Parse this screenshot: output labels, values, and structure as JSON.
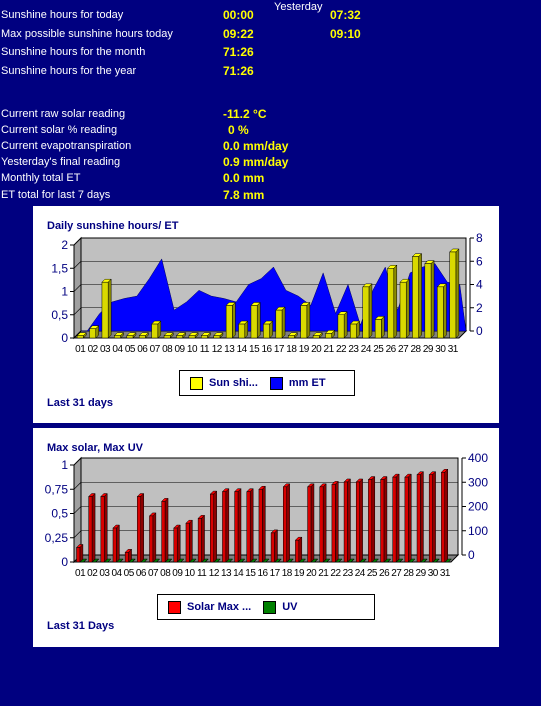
{
  "summary": {
    "yesterday_header": "Yesterday",
    "rows": [
      {
        "label": "Sunshine hours for today",
        "today": "00:00",
        "yesterday": "07:32"
      },
      {
        "label": "Max possible sunshine hours today",
        "today": "09:22",
        "yesterday": "09:10"
      },
      {
        "label": "Sunshine hours for the month",
        "today": "71:26",
        "yesterday": ""
      },
      {
        "label": "Sunshine hours for the year",
        "today": "71:26",
        "yesterday": ""
      }
    ]
  },
  "readings": [
    {
      "label": "Current raw solar reading",
      "value": "-11.2 °C"
    },
    {
      "label": "Current solar % reading",
      "value": "0 %"
    },
    {
      "label": "Current evapotranspiration",
      "value": "0.0 mm/day"
    },
    {
      "label": "Yesterday's final reading",
      "value": "0.9 mm/day"
    },
    {
      "label": "Monthly total ET",
      "value": "0.0 mm"
    },
    {
      "label": "ET total for last 7 days",
      "value": "7.8 mm"
    }
  ],
  "chart_data": [
    {
      "type": "bar",
      "title": "Daily sunshine hours/ ET",
      "footer": "Last 31 days",
      "categories": [
        "01",
        "02",
        "03",
        "04",
        "05",
        "06",
        "07",
        "08",
        "09",
        "10",
        "11",
        "12",
        "13",
        "14",
        "15",
        "16",
        "17",
        "18",
        "19",
        "20",
        "21",
        "22",
        "23",
        "24",
        "25",
        "26",
        "27",
        "28",
        "29",
        "30",
        "31"
      ],
      "series": [
        {
          "name": "Sun shi...",
          "axis": "left",
          "color": "#ffff00",
          "values": [
            0.05,
            0.2,
            1.2,
            0.05,
            0.05,
            0.05,
            0.3,
            0.05,
            0.05,
            0.05,
            0.05,
            0.05,
            0.7,
            0.3,
            0.7,
            0.3,
            0.6,
            0.05,
            0.7,
            0.05,
            0.1,
            0.5,
            0.3,
            1.1,
            0.4,
            1.5,
            1.2,
            1.75,
            1.6,
            1.1,
            1.85
          ]
        },
        {
          "name": "mm ET",
          "axis": "right",
          "type": "area",
          "color": "#0000ff",
          "values": [
            0,
            1.5,
            2.5,
            2.8,
            3,
            4.5,
            6.2,
            1.8,
            2.5,
            3.5,
            3,
            2.8,
            2.5,
            4,
            4.5,
            5.5,
            3.5,
            3,
            2.2,
            5,
            1.5,
            4,
            0.5,
            3.5,
            5.5,
            1.8,
            5,
            5.5,
            5.8,
            4.2,
            4
          ]
        }
      ],
      "ylim_left": [
        0,
        2
      ],
      "yticks_left": [
        "0",
        "0,5",
        "1",
        "1,5",
        "2"
      ],
      "ylim_right": [
        0,
        8
      ],
      "yticks_right": [
        "0",
        "2",
        "4",
        "6",
        "8"
      ],
      "legend_position": "bottom"
    },
    {
      "type": "bar",
      "title": "Max solar, Max UV",
      "footer": "Last 31 Days",
      "categories": [
        "01",
        "02",
        "03",
        "04",
        "05",
        "06",
        "07",
        "08",
        "09",
        "10",
        "11",
        "12",
        "13",
        "14",
        "15",
        "16",
        "17",
        "18",
        "19",
        "20",
        "21",
        "22",
        "23",
        "24",
        "25",
        "26",
        "27",
        "28",
        "29",
        "30",
        "31"
      ],
      "series": [
        {
          "name": "Solar Max ...",
          "axis": "right",
          "color": "#ff0000",
          "values": [
            60,
            270,
            270,
            140,
            40,
            270,
            190,
            250,
            140,
            160,
            180,
            280,
            290,
            290,
            290,
            300,
            120,
            310,
            90,
            310,
            310,
            320,
            330,
            330,
            340,
            340,
            350,
            350,
            360,
            360,
            370
          ]
        },
        {
          "name": "UV",
          "axis": "left",
          "color": "#008000",
          "values": [
            0,
            0,
            0,
            0,
            0,
            0,
            0,
            0,
            0,
            0,
            0,
            0,
            0,
            0,
            0,
            0,
            0,
            0,
            0,
            0,
            0,
            0,
            0,
            0,
            0,
            0,
            0,
            0,
            0,
            0,
            0
          ]
        }
      ],
      "ylim_left": [
        0,
        1
      ],
      "yticks_left": [
        "0",
        "0,25",
        "0,5",
        "0,75",
        "1"
      ],
      "ylim_right": [
        0,
        400
      ],
      "yticks_right": [
        "0",
        "100",
        "200",
        "300",
        "400"
      ],
      "legend_position": "bottom"
    }
  ]
}
